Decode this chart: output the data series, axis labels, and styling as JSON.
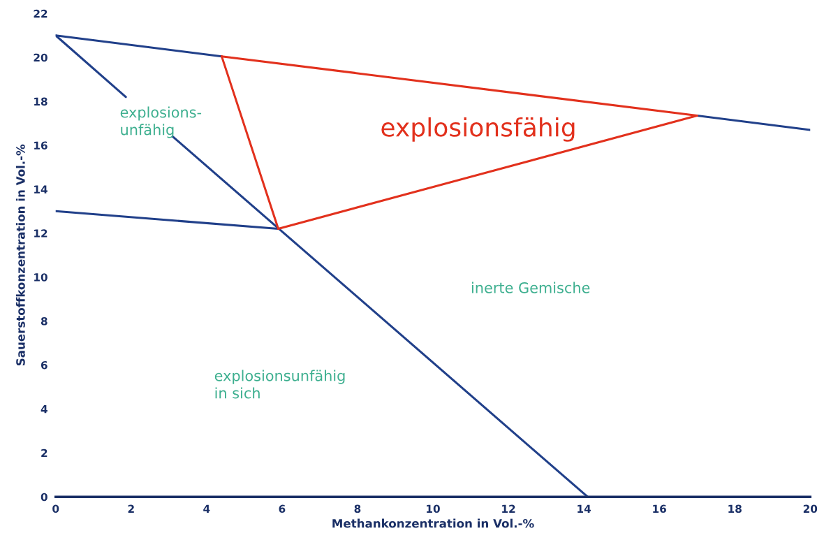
{
  "chart_data": {
    "type": "line",
    "xlabel": "Methankonzentration in Vol.-%",
    "ylabel": "Sauerstoffkonzentration in Vol.-%",
    "series": [
      {
        "color": "#21408a",
        "x": [
          0,
          4.4
        ],
        "values": [
          21,
          20.05
        ]
      },
      {
        "color": "#21408a",
        "x": [
          17,
          20
        ],
        "values": [
          17.35,
          16.7
        ]
      },
      {
        "color": "#21408a",
        "x": [
          0,
          1.86
        ],
        "values": [
          21,
          18.2
        ]
      },
      {
        "color": "#21408a",
        "x": [
          3.1,
          14.1
        ],
        "values": [
          16.4,
          0
        ]
      },
      {
        "color": "#21408a",
        "x": [
          0,
          5.9
        ],
        "values": [
          13,
          12.2
        ]
      },
      {
        "color": "#e2311d",
        "x": [
          4.4,
          17
        ],
        "values": [
          20.05,
          17.35
        ]
      },
      {
        "color": "#e2311d",
        "x": [
          4.4,
          5.9
        ],
        "values": [
          20.05,
          12.2
        ]
      },
      {
        "color": "#e2311d",
        "x": [
          5.9,
          17
        ],
        "values": [
          12.2,
          17.35
        ]
      }
    ],
    "annotations": [
      "explosions-\nunfähig",
      "explosionsfähig",
      "inerte Gemische",
      "explosionsunfähig\nin sich"
    ],
    "xlim": [
      0,
      20
    ],
    "ylim": [
      0,
      22
    ],
    "xticks": [
      0,
      2,
      4,
      6,
      8,
      10,
      12,
      14,
      16,
      18,
      20
    ],
    "yticks": [
      0,
      2,
      4,
      6,
      8,
      10,
      12,
      14,
      16,
      18,
      20,
      22
    ],
    "grid": false,
    "legend": false,
    "marker": "none",
    "line_style": "solid"
  }
}
